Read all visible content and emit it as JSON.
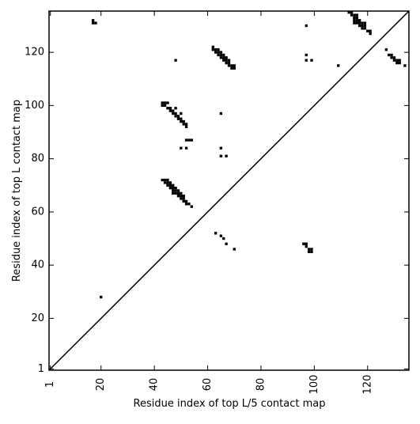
{
  "chart_data": {
    "type": "heatmap",
    "title": "",
    "xlabel": "Residue index of top L/5 contact map",
    "ylabel": "Residue index of top L contact map",
    "xlim": [
      1,
      135
    ],
    "ylim": [
      1,
      135
    ],
    "xticks": [
      1,
      20,
      40,
      60,
      80,
      100,
      120
    ],
    "yticks": [
      1,
      20,
      40,
      60,
      80,
      100,
      120
    ],
    "x_tick_labels": [
      "1",
      "20",
      "40",
      "60",
      "80",
      "100",
      "120"
    ],
    "y_tick_labels": [
      "1",
      "20",
      "40",
      "60",
      "80",
      "100",
      "120"
    ],
    "x_tick_rotation": 270,
    "diagonal_line": true,
    "grid": false,
    "cell_color": "#000000",
    "background_color": "#ffffff",
    "upper_triangle_contacts": [
      [
        17,
        131
      ],
      [
        17,
        132
      ],
      [
        18,
        131
      ],
      [
        48,
        117
      ],
      [
        62,
        121
      ],
      [
        62,
        122
      ],
      [
        63,
        120
      ],
      [
        63,
        121
      ],
      [
        64,
        119
      ],
      [
        64,
        120
      ],
      [
        64,
        121
      ],
      [
        65,
        118
      ],
      [
        65,
        119
      ],
      [
        65,
        120
      ],
      [
        66,
        117
      ],
      [
        66,
        118
      ],
      [
        66,
        119
      ],
      [
        67,
        116
      ],
      [
        67,
        117
      ],
      [
        67,
        118
      ],
      [
        68,
        115
      ],
      [
        68,
        116
      ],
      [
        68,
        117
      ],
      [
        69,
        114
      ],
      [
        69,
        115
      ],
      [
        70,
        114
      ],
      [
        70,
        115
      ],
      [
        97,
        130
      ],
      [
        97,
        119
      ],
      [
        97,
        117
      ],
      [
        99,
        117
      ],
      [
        109,
        115
      ],
      [
        113,
        135
      ],
      [
        114,
        134
      ],
      [
        114,
        135
      ],
      [
        115,
        131
      ],
      [
        115,
        132
      ],
      [
        115,
        133
      ],
      [
        115,
        134
      ],
      [
        116,
        131
      ],
      [
        116,
        132
      ],
      [
        116,
        133
      ],
      [
        116,
        134
      ],
      [
        117,
        130
      ],
      [
        117,
        131
      ],
      [
        117,
        132
      ],
      [
        118,
        129
      ],
      [
        118,
        130
      ],
      [
        118,
        131
      ],
      [
        119,
        129
      ],
      [
        119,
        130
      ],
      [
        119,
        131
      ],
      [
        120,
        128
      ],
      [
        121,
        127
      ],
      [
        121,
        128
      ],
      [
        127,
        121
      ],
      [
        128,
        119
      ],
      [
        129,
        118
      ],
      [
        129,
        119
      ],
      [
        130,
        117
      ],
      [
        130,
        118
      ],
      [
        131,
        116
      ],
      [
        131,
        117
      ],
      [
        132,
        116
      ],
      [
        132,
        117
      ],
      [
        134,
        115
      ]
    ],
    "lower_triangle_contacts": [
      [
        20,
        28
      ],
      [
        43,
        72
      ],
      [
        44,
        71
      ],
      [
        44,
        72
      ],
      [
        45,
        70
      ],
      [
        45,
        71
      ],
      [
        45,
        72
      ],
      [
        46,
        69
      ],
      [
        46,
        70
      ],
      [
        46,
        71
      ],
      [
        47,
        67
      ],
      [
        47,
        68
      ],
      [
        47,
        69
      ],
      [
        47,
        70
      ],
      [
        48,
        67
      ],
      [
        48,
        68
      ],
      [
        48,
        69
      ],
      [
        49,
        66
      ],
      [
        49,
        67
      ],
      [
        49,
        68
      ],
      [
        50,
        65
      ],
      [
        50,
        66
      ],
      [
        50,
        67
      ],
      [
        51,
        64
      ],
      [
        51,
        65
      ],
      [
        51,
        66
      ],
      [
        52,
        63
      ],
      [
        52,
        64
      ],
      [
        53,
        63
      ],
      [
        54,
        62
      ],
      [
        43,
        100
      ],
      [
        43,
        101
      ],
      [
        44,
        100
      ],
      [
        44,
        101
      ],
      [
        45,
        99
      ],
      [
        45,
        101
      ],
      [
        46,
        98
      ],
      [
        46,
        99
      ],
      [
        47,
        97
      ],
      [
        47,
        98
      ],
      [
        48,
        96
      ],
      [
        48,
        97
      ],
      [
        48,
        99
      ],
      [
        49,
        95
      ],
      [
        49,
        96
      ],
      [
        50,
        94
      ],
      [
        50,
        95
      ],
      [
        50,
        97
      ],
      [
        51,
        93
      ],
      [
        51,
        94
      ],
      [
        52,
        92
      ],
      [
        52,
        93
      ],
      [
        52,
        87
      ],
      [
        53,
        87
      ],
      [
        54,
        87
      ],
      [
        50,
        84
      ],
      [
        52,
        84
      ],
      [
        65,
        97
      ],
      [
        65,
        84
      ],
      [
        65,
        81
      ],
      [
        67,
        81
      ],
      [
        63,
        52
      ],
      [
        65,
        51
      ],
      [
        66,
        50
      ],
      [
        67,
        48
      ],
      [
        70,
        46
      ],
      [
        96,
        48
      ],
      [
        97,
        47
      ],
      [
        97,
        48
      ],
      [
        98,
        45
      ],
      [
        98,
        46
      ],
      [
        99,
        45
      ],
      [
        99,
        46
      ]
    ]
  }
}
